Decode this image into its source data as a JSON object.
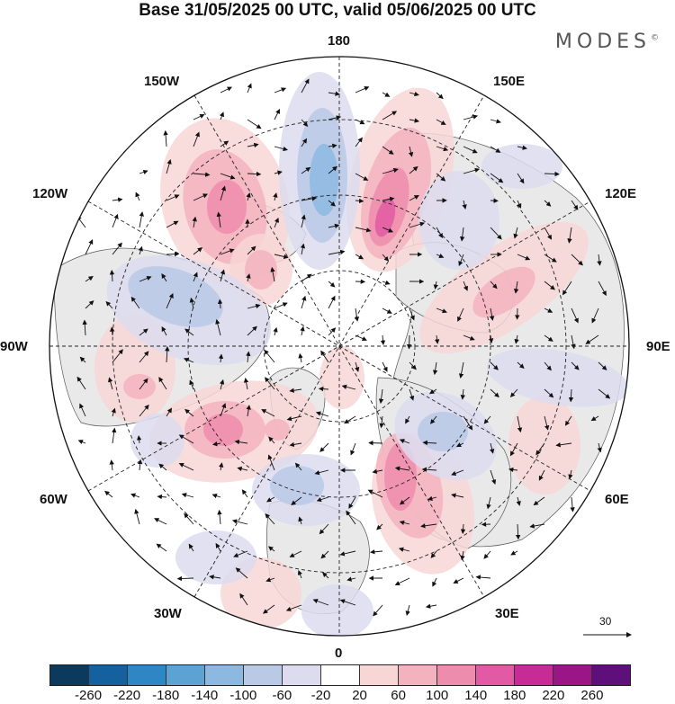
{
  "title": "Base 31/05/2025 00 UTC, valid 05/06/2025 00 UTC",
  "brand": "MODES",
  "brand_mark": "©",
  "longitude_labels": {
    "lon_180": "180",
    "lon_150e": "150E",
    "lon_120e": "120E",
    "lon_90e": "90E",
    "lon_60e": "60E",
    "lon_30e": "30E",
    "lon_0": "0",
    "lon_30w": "30W",
    "lon_60w": "60W",
    "lon_90w": "90W",
    "lon_120w": "120W",
    "lon_150w": "150W"
  },
  "wind_reference": {
    "value": "30"
  },
  "colorbar": {
    "colors": [
      "#0b3a5c",
      "#1561a0",
      "#2f86c4",
      "#5ca3d4",
      "#8db9e0",
      "#bac9e6",
      "#dcdcee",
      "#ffffff",
      "#f8d6d6",
      "#f3b3be",
      "#ee8cae",
      "#e25aa3",
      "#c72b95",
      "#9a1585",
      "#5e0f7a"
    ],
    "tick_labels": [
      "-260",
      "-220",
      "-180",
      "-140",
      "-100",
      "-60",
      "-20",
      "20",
      "60",
      "100",
      "140",
      "180",
      "220",
      "260"
    ]
  },
  "anomaly_levels": [
    {
      "c": "#f8d6d6"
    },
    {
      "c": "#f3b3be"
    },
    {
      "c": "#ee8cae"
    },
    {
      "c": "#e25aa3"
    },
    {
      "c": "#c72b95"
    },
    {
      "c": "#dcdcee"
    },
    {
      "c": "#bac9e6"
    },
    {
      "c": "#8db9e0"
    }
  ]
}
